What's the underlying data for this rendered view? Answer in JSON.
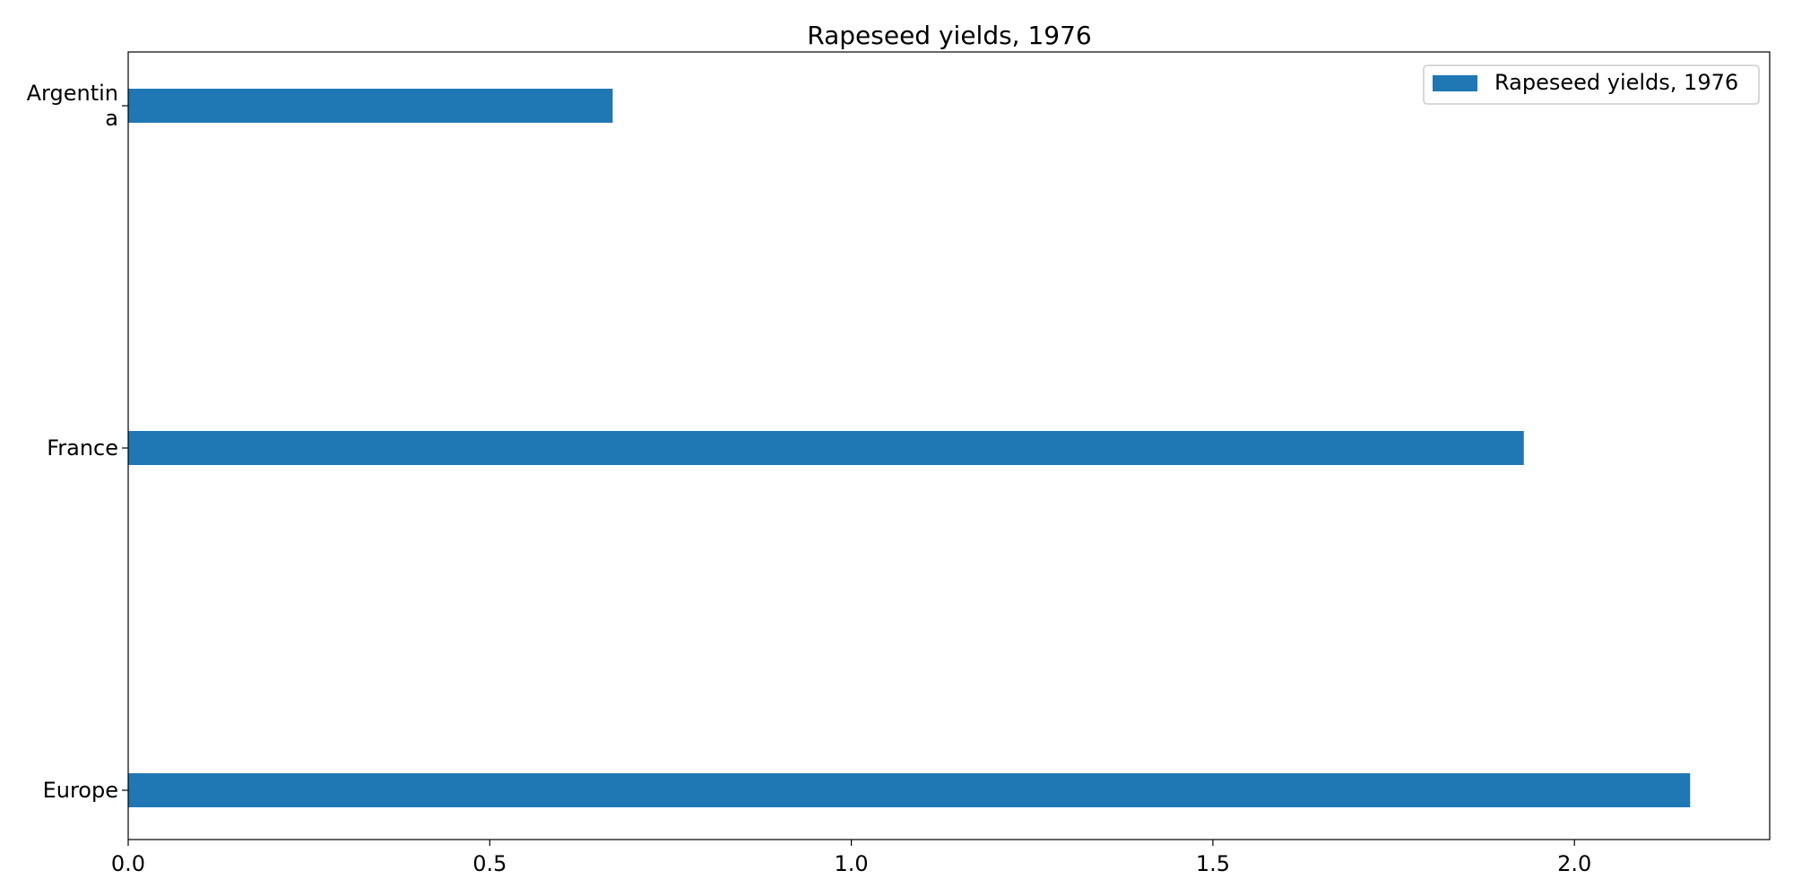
{
  "chart_data": {
    "type": "bar",
    "orientation": "horizontal",
    "title": "Rapeseed yields, 1976",
    "xlabel": "",
    "ylabel": "",
    "categories": [
      "Argentina",
      "France",
      "Europe"
    ],
    "category_display": [
      [
        "Argentin",
        "a"
      ],
      [
        "France"
      ],
      [
        "Europe"
      ]
    ],
    "series": [
      {
        "name": "Rapeseed yields, 1976",
        "values": [
          0.67,
          1.93,
          2.16
        ],
        "color": "#1f77b4"
      }
    ],
    "xlim": [
      0,
      2.27
    ],
    "xticks": [
      0.0,
      0.5,
      1.0,
      1.5,
      2.0
    ],
    "xtick_labels": [
      "0.0",
      "0.5",
      "1.0",
      "1.5",
      "2.0"
    ],
    "grid": false,
    "legend": {
      "position": "top-right",
      "entries": [
        "Rapeseed yields, 1976"
      ]
    }
  }
}
